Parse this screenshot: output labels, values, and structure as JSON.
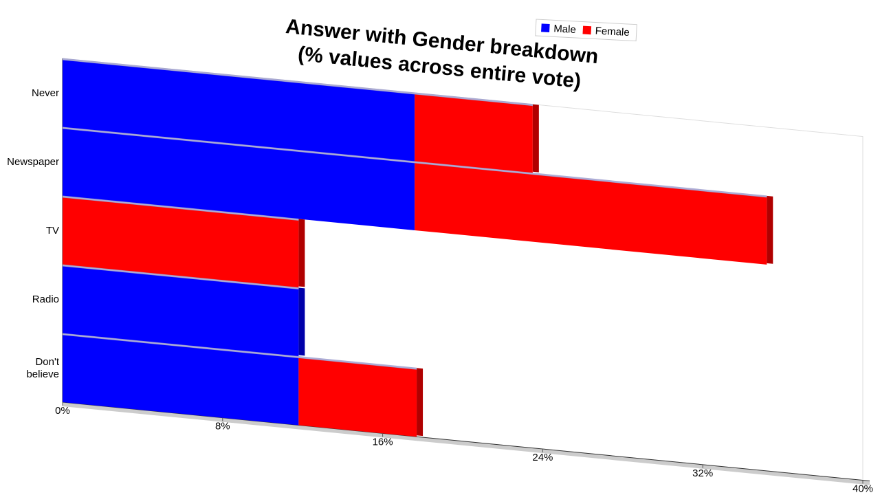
{
  "chart_data": {
    "type": "stacked-barh",
    "title": "Answer with Gender breakdown",
    "subtitle": "(% values across entire vote)",
    "categories": [
      "Never",
      "Newspaper",
      "TV",
      "Radio",
      "Don't believe"
    ],
    "series": [
      {
        "name": "Male",
        "color": "#0000ff",
        "values": [
          17.6,
          17.6,
          0,
          11.8,
          11.8
        ]
      },
      {
        "name": "Female",
        "color": "#ff0000",
        "values": [
          5.9,
          17.6,
          11.8,
          0,
          5.9
        ]
      }
    ],
    "xlim": [
      0,
      40
    ],
    "xticks": [
      {
        "value": 0,
        "label": "0%"
      },
      {
        "value": 8,
        "label": "8%"
      },
      {
        "value": 16,
        "label": "16%"
      },
      {
        "value": 24,
        "label": "24%"
      },
      {
        "value": 32,
        "label": "32%"
      },
      {
        "value": 40,
        "label": "40%"
      }
    ],
    "legend": "top-right"
  }
}
